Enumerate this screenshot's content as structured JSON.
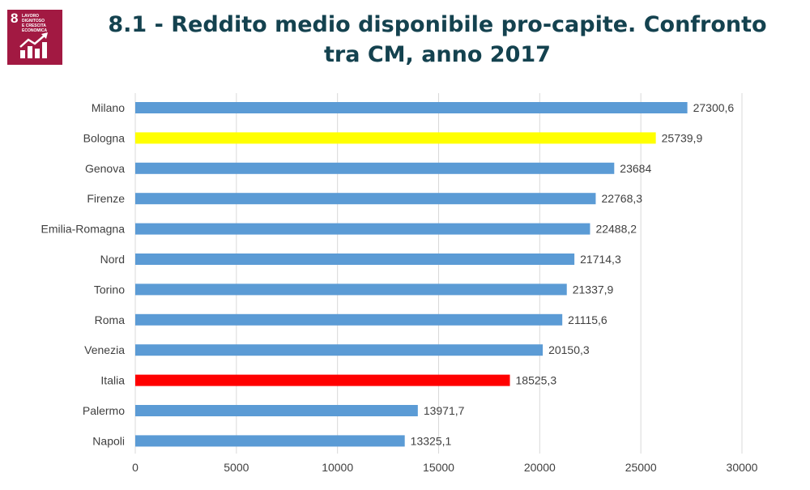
{
  "logo": {
    "number": "8",
    "text": "LAVORO DIGNITOSO\nE CRESCITA\nECONOMICA",
    "icon": "growth-chart-icon",
    "color": "#a21942"
  },
  "chart_data": {
    "type": "bar",
    "orientation": "horizontal",
    "title": "8.1 - Reddito medio disponibile pro-capite. Confronto tra CM, anno 2017",
    "categories": [
      "Milano",
      "Bologna",
      "Genova",
      "Firenze",
      "Emilia-Romagna",
      "Nord",
      "Torino",
      "Roma",
      "Venezia",
      "Italia",
      "Palermo",
      "Napoli"
    ],
    "values": [
      27300.6,
      25739.9,
      23684,
      22768.3,
      22488.2,
      21714.3,
      21337.9,
      21115.6,
      20150.3,
      18525.3,
      13971.7,
      13325.1
    ],
    "value_labels": [
      "27300,6",
      "25739,9",
      "23684",
      "22768,3",
      "22488,2",
      "21714,3",
      "21337,9",
      "21115,6",
      "20150,3",
      "18525,3",
      "13971,7",
      "13325,1"
    ],
    "colors": [
      "#5b9bd5",
      "#ffff00",
      "#5b9bd5",
      "#5b9bd5",
      "#5b9bd5",
      "#5b9bd5",
      "#5b9bd5",
      "#5b9bd5",
      "#5b9bd5",
      "#ff0000",
      "#5b9bd5",
      "#5b9bd5"
    ],
    "xlim": [
      0,
      30000
    ],
    "xticks": [
      0,
      5000,
      10000,
      15000,
      20000,
      25000,
      30000
    ],
    "grid": "vertical",
    "legend": "none"
  }
}
